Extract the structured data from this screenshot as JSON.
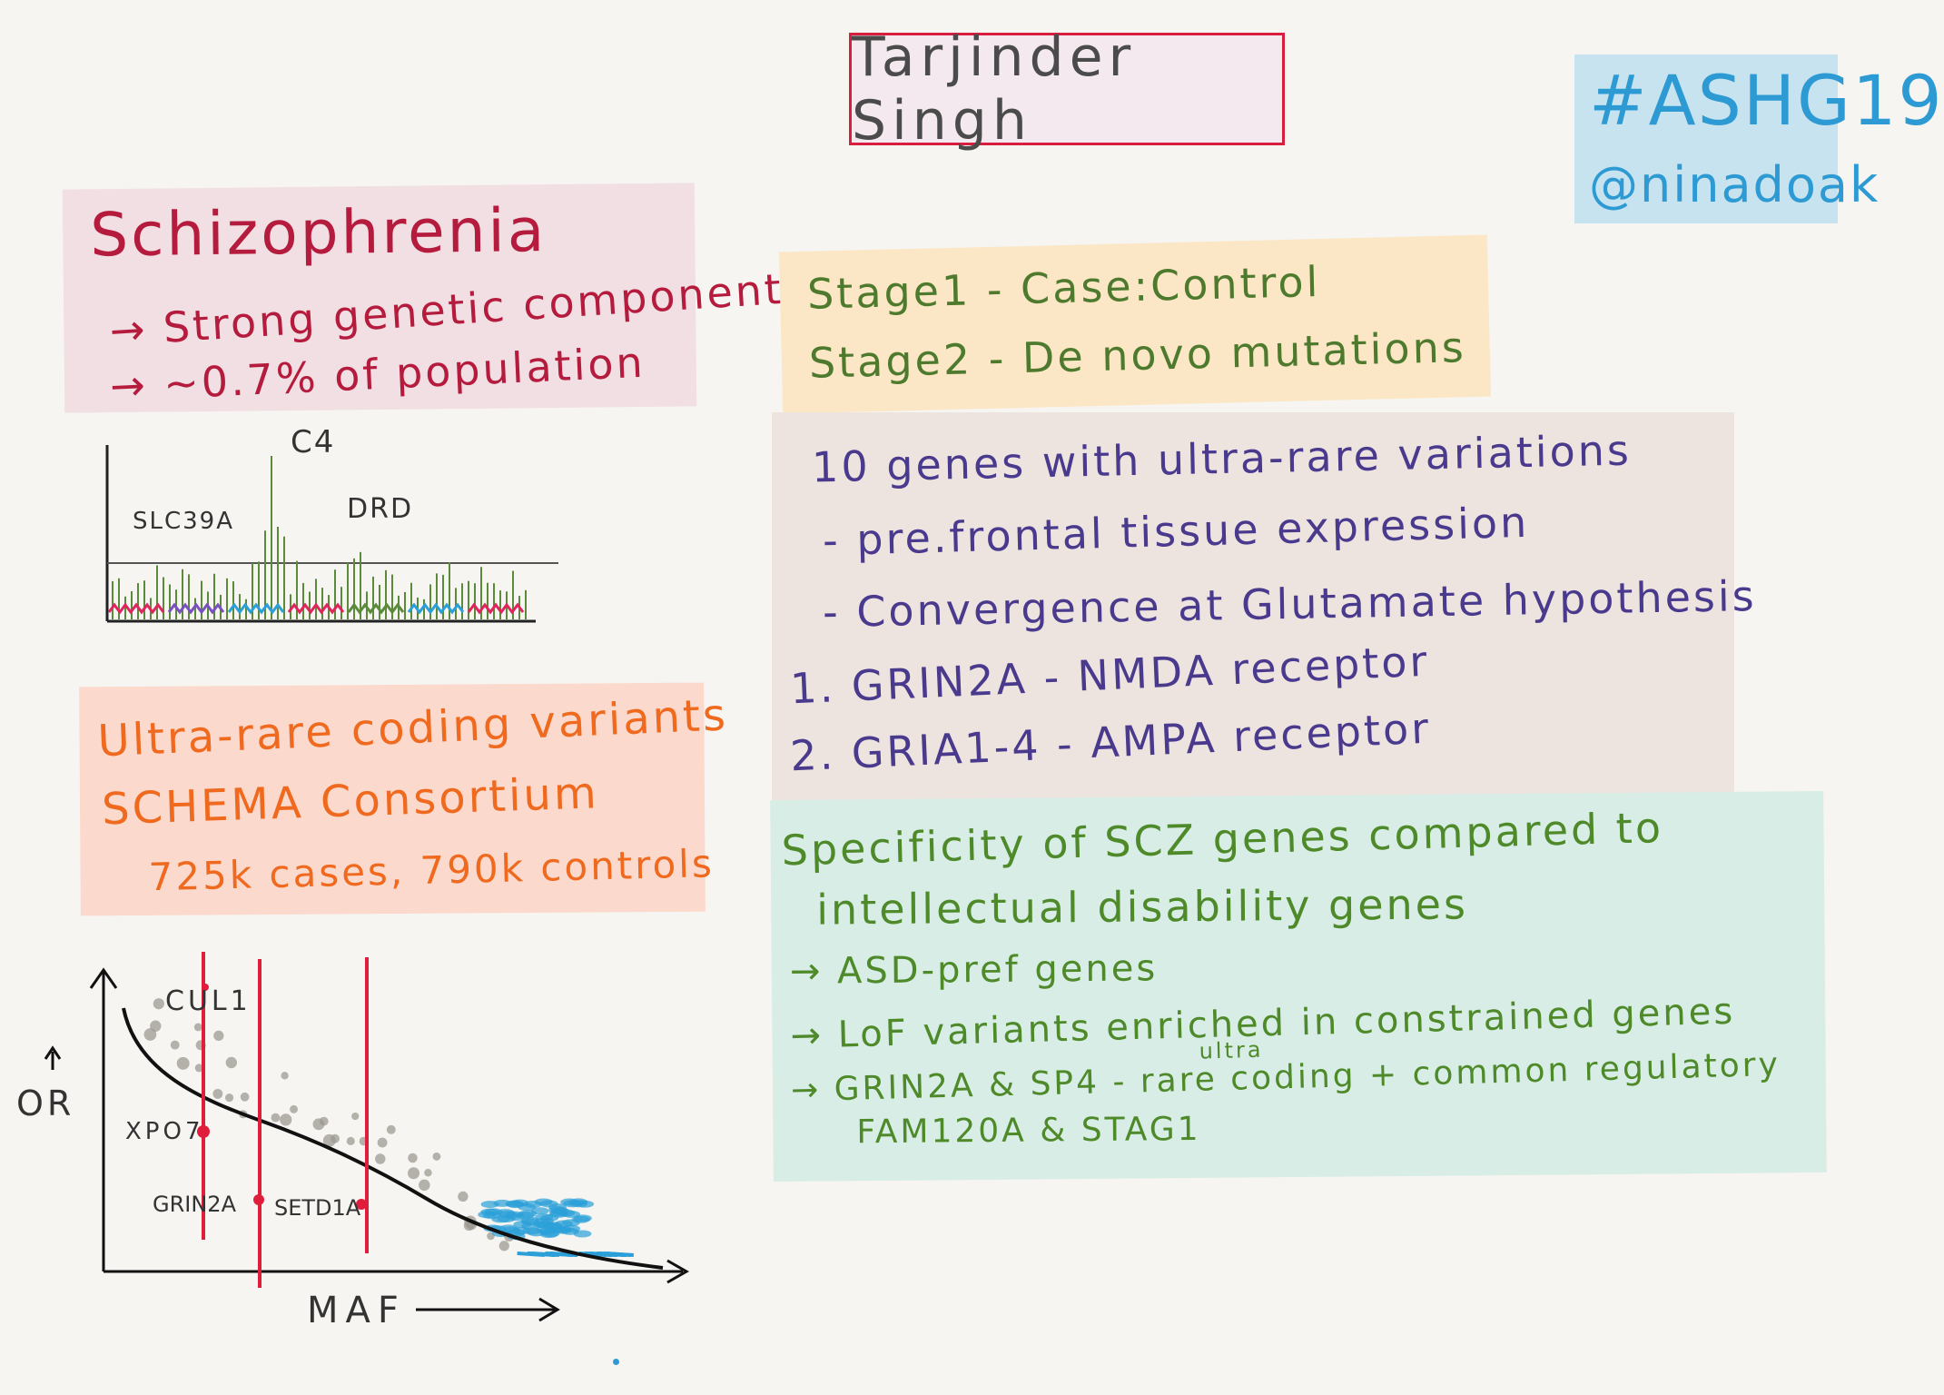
{
  "title": "Tarjinder Singh",
  "tag": {
    "hashtag": "#ASHG19",
    "handle": "@ninadoak"
  },
  "schizophrenia": {
    "title": "Schizophrenia",
    "lines": [
      "→ Strong genetic component",
      "→ ~0.7% of population"
    ]
  },
  "manhattan": {
    "labels": [
      "C4",
      "SLC39A",
      "DRD"
    ]
  },
  "ultra_rare": {
    "lines": [
      "Ultra-rare coding variants",
      "SCHEMA Consortium",
      "725k cases, 790k controls"
    ]
  },
  "stages": [
    "Stage1 - Case:Control",
    "Stage2 - De novo mutations"
  ],
  "genes": {
    "lines": [
      "10 genes with ultra-rare variations",
      "- pre.frontal tissue expression",
      "- Convergence at Glutamate hypothesis",
      "1. GRIN2A - NMDA receptor",
      "2. GRIA1-4 - AMPA receptor"
    ]
  },
  "specificity": {
    "lines": [
      "Specificity of SCZ genes compared to",
      "intellectual disability genes",
      "→ ASD-pref genes",
      "→ LoF variants enriched in constrained genes",
      "→ GRIN2A & SP4 - rare coding + common regulatory",
      "FAM120A & STAG1"
    ],
    "superscript": "ultra"
  },
  "or_plot": {
    "y_label": "OR",
    "x_label": "MAF",
    "gene_labels": [
      "CUL1",
      "XPO7",
      "GRIN2A",
      "SETD1A"
    ],
    "colors": {
      "line": "#e01e3c",
      "curve": "#111111",
      "dots": "#9c9a92",
      "cluster": "#2b9fd8"
    }
  },
  "colors": {
    "title_border": "#d81e3f",
    "scz": "#b51b3d",
    "ultra_rare": "#ef6a1f",
    "stage": "#4e7a2e",
    "genes": "#4a3a8e",
    "specificity": "#4f8a2a",
    "tag": "#2e9ad3"
  }
}
